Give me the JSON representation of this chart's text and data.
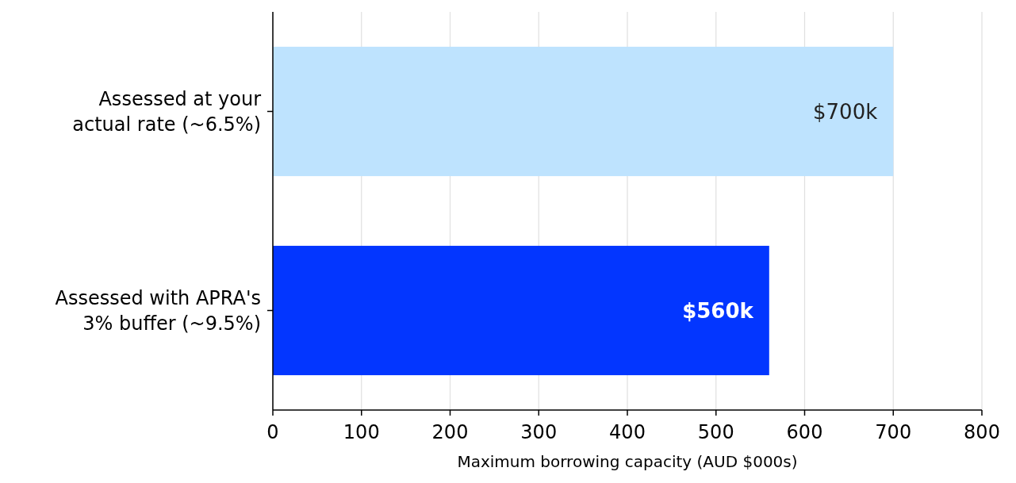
{
  "chart_data": {
    "type": "bar",
    "orientation": "horizontal",
    "categories": [
      "Assessed at your\nactual rate (~6.5%)",
      "Assessed with APRA's\n3% buffer (~9.5%)"
    ],
    "values": [
      700,
      560
    ],
    "colors": [
      "#bee3fe",
      "#0336ff"
    ],
    "value_labels": [
      "$700k",
      "$560k"
    ],
    "xlabel": "Maximum borrowing capacity (AUD $000s)",
    "xlim": [
      0,
      800
    ],
    "xticks": [
      0,
      100,
      200,
      300,
      400,
      500,
      600,
      700,
      800
    ],
    "grid": "x"
  }
}
